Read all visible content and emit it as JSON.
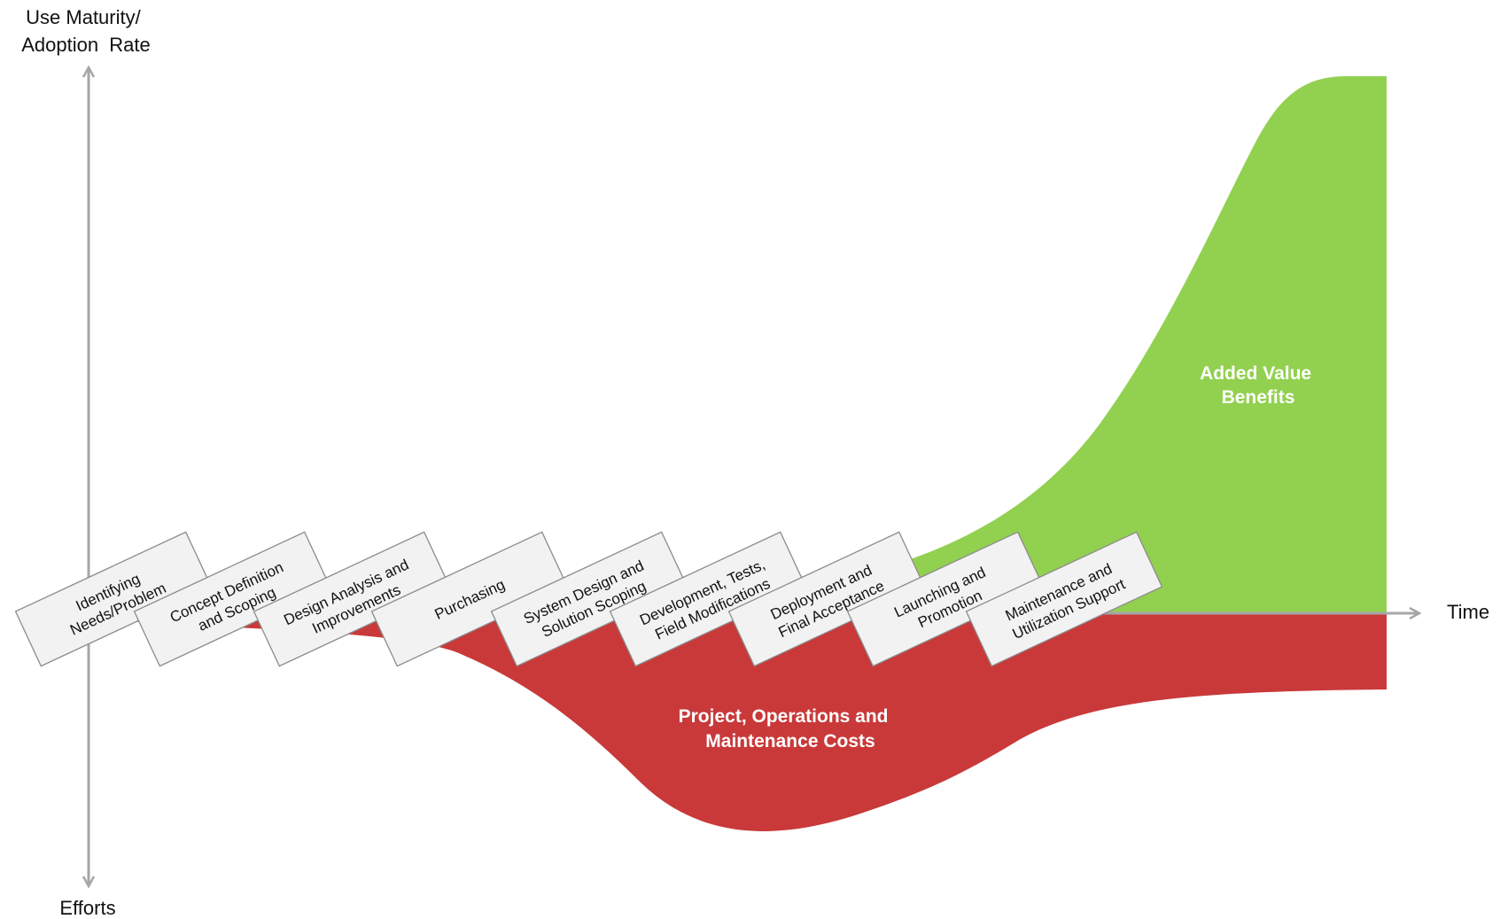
{
  "y_axis": {
    "title_lines": [
      "Use Maturity/",
      "Adoption  Rate"
    ]
  },
  "y_axis_bottom": {
    "label": "Efforts"
  },
  "x_axis": {
    "label": "Time"
  },
  "benefits_area": {
    "label_lines": [
      "Added Value",
      "Benefits"
    ],
    "color": "#92d050"
  },
  "costs_area": {
    "label_lines": [
      "Project, Operations and",
      "Maintenance Costs"
    ],
    "color": "#c9393a"
  },
  "colors": {
    "axis": "#a6a6a6",
    "box_fill": "#f2f2f2",
    "box_border": "#8c8c8c"
  },
  "phases": [
    {
      "lines": [
        "Identifying",
        "Needs/Problem"
      ]
    },
    {
      "lines": [
        "Concept Definition",
        "and Scoping"
      ]
    },
    {
      "lines": [
        "Design Analysis and",
        "Improvements"
      ]
    },
    {
      "lines": [
        "Purchasing"
      ]
    },
    {
      "lines": [
        "System Design and",
        "Solution Scoping"
      ]
    },
    {
      "lines": [
        "Development, Tests,",
        "Field Modifications"
      ]
    },
    {
      "lines": [
        "Deployment and",
        "Final Acceptance"
      ]
    },
    {
      "lines": [
        "Launching and",
        "Promotion"
      ]
    },
    {
      "lines": [
        "Maintenance and",
        "Utilization Support"
      ]
    }
  ]
}
